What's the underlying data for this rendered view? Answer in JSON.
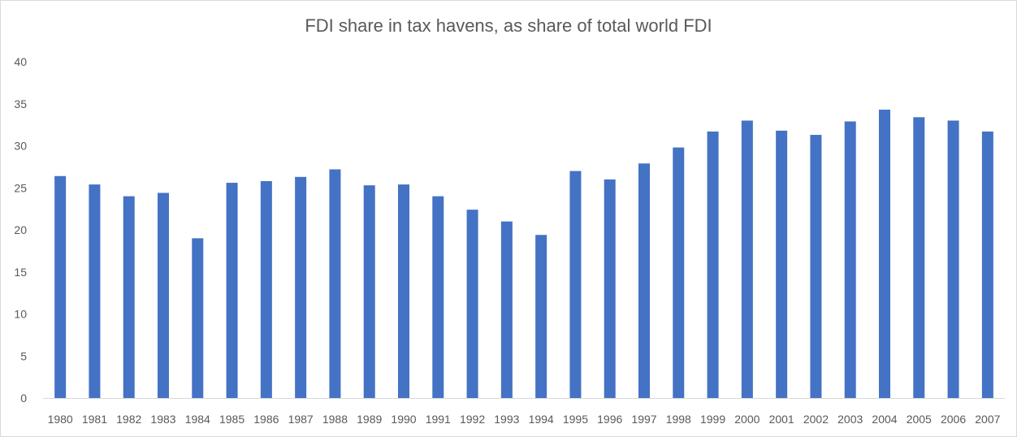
{
  "chart_data": {
    "type": "bar",
    "title": "FDI share in tax havens, as share of total world FDI",
    "xlabel": "",
    "ylabel": "",
    "ylim": [
      0,
      40
    ],
    "yticks": [
      0,
      5,
      10,
      15,
      20,
      25,
      30,
      35,
      40
    ],
    "grid": false,
    "legend": "none",
    "bar_color": "#4472c4",
    "categories": [
      "1980",
      "1981",
      "1982",
      "1983",
      "1984",
      "1985",
      "1986",
      "1987",
      "1988",
      "1989",
      "1990",
      "1991",
      "1992",
      "1993",
      "1994",
      "1995",
      "1996",
      "1997",
      "1998",
      "1999",
      "2000",
      "2001",
      "2002",
      "2003",
      "2004",
      "2005",
      "2006",
      "2007"
    ],
    "values": [
      26.4,
      25.4,
      24.0,
      24.4,
      19.0,
      25.6,
      25.8,
      26.3,
      27.2,
      25.3,
      25.4,
      24.0,
      22.4,
      21.0,
      19.4,
      27.0,
      26.0,
      27.9,
      29.8,
      31.7,
      33.0,
      31.8,
      31.3,
      32.9,
      34.3,
      33.4,
      33.0,
      31.7
    ]
  }
}
